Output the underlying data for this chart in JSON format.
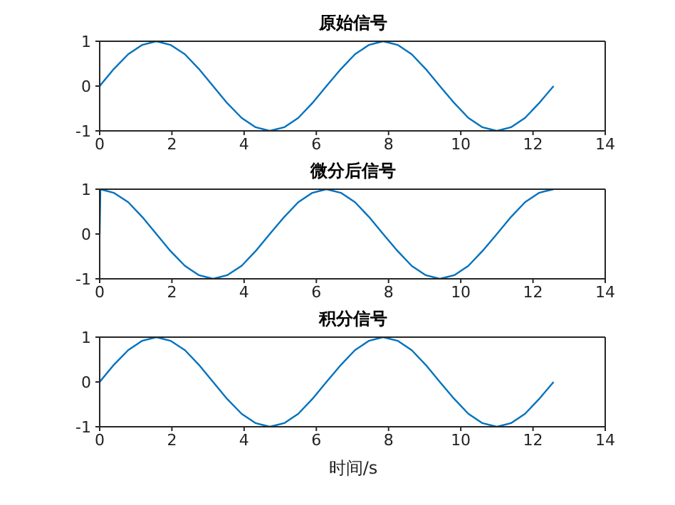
{
  "chart_data": [
    {
      "type": "line",
      "title": "原始信号",
      "color": "#0072bd",
      "xlim": [
        0,
        14
      ],
      "xticks": [
        0,
        2,
        4,
        6,
        8,
        10,
        12,
        14
      ],
      "ylim": [
        -1,
        1
      ],
      "yticks": [
        -1,
        0,
        1
      ],
      "x": [
        0,
        0.39,
        0.79,
        1.18,
        1.57,
        1.96,
        2.36,
        2.75,
        3.14,
        3.53,
        3.93,
        4.32,
        4.71,
        5.11,
        5.5,
        5.89,
        6.28,
        6.68,
        7.07,
        7.46,
        7.85,
        8.25,
        8.64,
        9.03,
        9.42,
        9.82,
        10.21,
        10.6,
        11,
        11.39,
        11.78,
        12.17,
        12.57
      ],
      "values": [
        0,
        0.38,
        0.71,
        0.92,
        1,
        0.92,
        0.71,
        0.38,
        0,
        -0.38,
        -0.71,
        -0.92,
        -1,
        -0.92,
        -0.71,
        -0.38,
        0,
        0.38,
        0.71,
        0.92,
        1,
        0.92,
        0.71,
        0.38,
        0,
        -0.38,
        -0.71,
        -0.92,
        -1,
        -0.92,
        -0.71,
        -0.38,
        0
      ]
    },
    {
      "type": "line",
      "title": "微分后信号",
      "color": "#0072bd",
      "xlim": [
        0,
        14
      ],
      "xticks": [
        0,
        2,
        4,
        6,
        8,
        10,
        12,
        14
      ],
      "ylim": [
        -1,
        1
      ],
      "yticks": [
        -1,
        0,
        1
      ],
      "x": [
        0,
        0.02,
        0.39,
        0.79,
        1.18,
        1.57,
        1.96,
        2.36,
        2.75,
        3.14,
        3.53,
        3.93,
        4.32,
        4.71,
        5.11,
        5.5,
        5.89,
        6.28,
        6.68,
        7.07,
        7.46,
        7.85,
        8.25,
        8.64,
        9.03,
        9.42,
        9.82,
        10.21,
        10.6,
        11,
        11.39,
        11.78,
        12.17,
        12.57
      ],
      "values": [
        0,
        1,
        0.92,
        0.71,
        0.38,
        0,
        -0.38,
        -0.71,
        -0.92,
        -1,
        -0.92,
        -0.71,
        -0.38,
        0,
        0.38,
        0.71,
        0.92,
        1,
        0.92,
        0.71,
        0.38,
        0,
        -0.38,
        -0.71,
        -0.92,
        -1,
        -0.92,
        -0.71,
        -0.38,
        0,
        0.38,
        0.71,
        0.92,
        1
      ]
    },
    {
      "type": "line",
      "title": "积分信号",
      "xlabel": "时间/s",
      "color": "#0072bd",
      "xlim": [
        0,
        14
      ],
      "xticks": [
        0,
        2,
        4,
        6,
        8,
        10,
        12,
        14
      ],
      "ylim": [
        -1,
        1
      ],
      "yticks": [
        -1,
        0,
        1
      ],
      "x": [
        0,
        0.39,
        0.79,
        1.18,
        1.57,
        1.96,
        2.36,
        2.75,
        3.14,
        3.53,
        3.93,
        4.32,
        4.71,
        5.11,
        5.5,
        5.89,
        6.28,
        6.68,
        7.07,
        7.46,
        7.85,
        8.25,
        8.64,
        9.03,
        9.42,
        9.82,
        10.21,
        10.6,
        11,
        11.39,
        11.78,
        12.17,
        12.57
      ],
      "values": [
        0,
        0.38,
        0.71,
        0.92,
        1,
        0.92,
        0.71,
        0.38,
        0,
        -0.38,
        -0.71,
        -0.92,
        -1,
        -0.92,
        -0.71,
        -0.38,
        0,
        0.38,
        0.71,
        0.92,
        1,
        0.92,
        0.71,
        0.38,
        0,
        -0.38,
        -0.71,
        -0.92,
        -1,
        -0.92,
        -0.71,
        -0.38,
        0
      ]
    }
  ]
}
